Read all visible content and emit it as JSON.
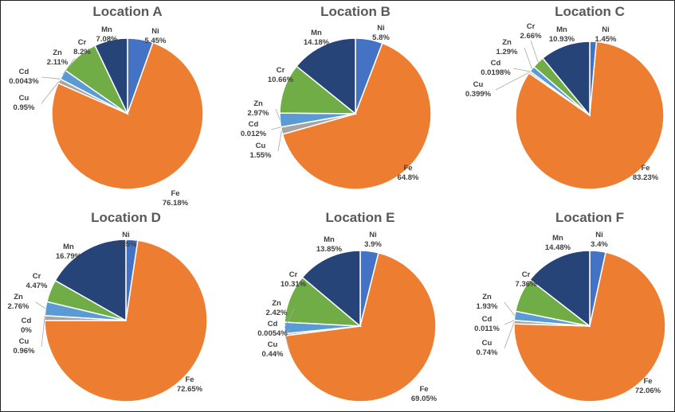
{
  "chart_data": [
    {
      "type": "pie",
      "title": "Location A",
      "labels": [
        "Ni",
        "Fe",
        "Cu",
        "Cd",
        "Zn",
        "Cr",
        "Mn"
      ],
      "values": [
        5.45,
        76.18,
        0.95,
        0.0043,
        2.11,
        8.2,
        7.08
      ],
      "value_labels": [
        "5.45%",
        "76.18%",
        "0.95%",
        "0.0043%",
        "2.11%",
        "8.2%",
        "7.08%"
      ]
    },
    {
      "type": "pie",
      "title": "Location B",
      "labels": [
        "Ni",
        "Fe",
        "Cu",
        "Cd",
        "Zn",
        "Cr",
        "Mn"
      ],
      "values": [
        5.8,
        64.8,
        1.55,
        0.012,
        2.97,
        10.66,
        14.18
      ],
      "value_labels": [
        "5.8%",
        "64.8%",
        "1.55%",
        "0.012%",
        "2.97%",
        "10.66%",
        "14.18%"
      ]
    },
    {
      "type": "pie",
      "title": "Location C",
      "labels": [
        "Ni",
        "Fe",
        "Cu",
        "Cd",
        "Zn",
        "Cr",
        "Mn"
      ],
      "values": [
        1.45,
        83.23,
        0.399,
        0.0198,
        1.29,
        2.66,
        10.93
      ],
      "value_labels": [
        "1.45%",
        "83.23%",
        "0.399%",
        "0.0198%",
        "1.29%",
        "2.66%",
        "10.93%"
      ]
    },
    {
      "type": "pie",
      "title": "Location D",
      "labels": [
        "Ni",
        "Fe",
        "Cu",
        "Cd",
        "Zn",
        "Cr",
        "Mn"
      ],
      "values": [
        2.35,
        72.65,
        0.96,
        0,
        2.76,
        4.47,
        16.79
      ],
      "value_labels": [
        "2.35%",
        "72.65%",
        "0.96%",
        "0%",
        "2.76%",
        "4.47%",
        "16.79%"
      ]
    },
    {
      "type": "pie",
      "title": "Location E",
      "labels": [
        "Ni",
        "Fe",
        "Cu",
        "Cd",
        "Zn",
        "Cr",
        "Mn"
      ],
      "values": [
        3.9,
        69.05,
        0.44,
        0.0054,
        2.42,
        10.31,
        13.85
      ],
      "value_labels": [
        "3.9%",
        "69.05%",
        "0.44%",
        "0.0054%",
        "2.42%",
        "10.31%",
        "13.85%"
      ]
    },
    {
      "type": "pie",
      "title": "Location F",
      "labels": [
        "Ni",
        "Fe",
        "Cu",
        "Cd",
        "Zn",
        "Cr",
        "Mn"
      ],
      "values": [
        3.4,
        72.06,
        0.74,
        0.011,
        1.93,
        7.36,
        14.48
      ],
      "value_labels": [
        "3.4%",
        "72.06%",
        "0.74%",
        "0.011%",
        "1.93%",
        "7.36%",
        "14.48%"
      ]
    }
  ],
  "colors": {
    "Ni": "#4472C4",
    "Fe": "#ED7D31",
    "Cu": "#A5A5A5",
    "Cd": "#FFC000",
    "Zn": "#5B9BD5",
    "Cr": "#70AD47",
    "Mn": "#264478"
  }
}
